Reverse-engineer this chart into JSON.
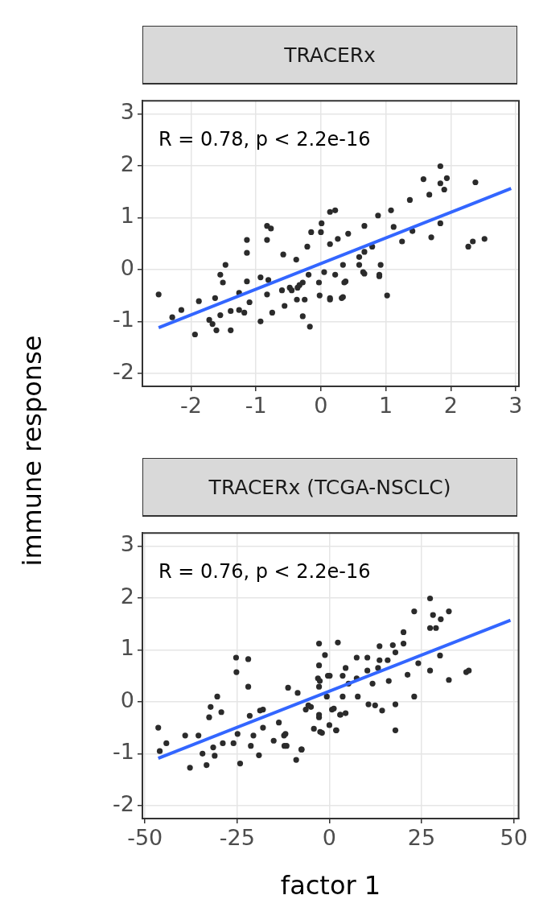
{
  "chart_data": [
    {
      "type": "scatter",
      "title": "TRACERx",
      "ylabel": "immune response",
      "annotations": [
        "R = 0.78, p < 2.2e-16"
      ],
      "xlim": [
        -2.75,
        3.05
      ],
      "xticks": [
        -2,
        -1,
        0,
        1,
        2,
        3
      ],
      "ylim": [
        -2.25,
        3.25
      ],
      "yticks": [
        -2,
        -1,
        0,
        1,
        2,
        3
      ],
      "grid": true,
      "marker": "circle",
      "series": [
        {
          "color": "#2b2b2b",
          "x": [
            1.84,
            1.58,
            1.94,
            1.84,
            1.9,
            1.67,
            2.38,
            1.37,
            0.22,
            0.14,
            -0.83,
            -0.77,
            0.01,
            -0.15,
            0.0,
            -1.14,
            -0.83,
            -1.14,
            -0.58,
            -0.21,
            -0.38,
            0.14,
            0.26,
            0.42,
            0.67,
            0.88,
            1.08,
            1.12,
            1.25,
            1.41,
            1.7,
            1.84,
            2.27,
            2.34,
            2.52,
            0.79,
            0.67,
            0.59,
            0.92,
            0.9,
            0.67,
            0.59,
            0.34,
            0.38,
            0.22,
            0.05,
            -0.03,
            -0.19,
            -0.28,
            -0.36,
            -0.48,
            -0.6,
            0.14,
            0.34,
            1.02,
            -0.02,
            -0.81,
            -0.93,
            -1.14,
            -1.47,
            -1.55,
            -1.51,
            -2.5,
            -1.88,
            -2.15,
            -1.26,
            -0.83,
            -0.45,
            -0.33,
            -0.37,
            -0.25,
            0.14,
            0.32,
            0.36,
            -0.28,
            -0.17,
            -0.56,
            -0.75,
            -0.93,
            -1.1,
            -1.18,
            -1.39,
            -1.55,
            -1.39,
            -1.61,
            -1.72,
            -1.67,
            -1.63,
            -1.94,
            -2.29,
            0.9,
            0.65,
            -1.26
          ],
          "values": [
            1.99,
            1.74,
            1.76,
            1.66,
            1.54,
            1.44,
            1.68,
            1.34,
            1.14,
            1.11,
            0.84,
            0.79,
            0.89,
            0.72,
            0.72,
            0.57,
            0.57,
            0.32,
            0.29,
            0.44,
            0.19,
            0.49,
            0.59,
            0.69,
            0.84,
            1.04,
            1.14,
            0.82,
            0.54,
            0.74,
            0.62,
            0.89,
            0.44,
            0.54,
            0.59,
            0.44,
            0.34,
            0.24,
            0.09,
            -0.1,
            -0.08,
            0.09,
            0.09,
            -0.23,
            -0.1,
            -0.05,
            -0.25,
            -0.1,
            -0.25,
            -0.35,
            -0.35,
            -0.4,
            -0.55,
            -0.53,
            -0.5,
            -0.5,
            -0.2,
            -0.15,
            -0.23,
            0.09,
            -0.1,
            -0.25,
            -0.48,
            -0.61,
            -0.78,
            -0.45,
            -0.48,
            -0.4,
            -0.3,
            -0.58,
            -0.58,
            -0.58,
            -0.55,
            -0.25,
            -0.9,
            -1.1,
            -0.7,
            -0.83,
            -1.0,
            -0.63,
            -0.83,
            -0.8,
            -0.88,
            -1.17,
            -1.17,
            -0.97,
            -1.05,
            -0.55,
            -1.25,
            -0.92,
            -0.13,
            -0.05,
            -0.78
          ]
        },
        {
          "type": "line",
          "color": "#3366ff",
          "marker": "none",
          "x": [
            -2.5,
            2.93
          ],
          "values": [
            -1.12,
            1.56
          ]
        }
      ]
    },
    {
      "type": "scatter",
      "title": "TRACERx (TCGA-NSCLC)",
      "xlabel": "factor 1",
      "annotations": [
        "R = 0.76, p < 2.2e-16"
      ],
      "xlim": [
        -50.7,
        51.3
      ],
      "xticks": [
        -50,
        -25,
        0,
        25,
        50
      ],
      "ylim": [
        -2.25,
        3.25
      ],
      "yticks": [
        -2,
        -1,
        0,
        1,
        2,
        3
      ],
      "grid": true,
      "marker": "circle",
      "series": [
        {
          "color": "#2b2b2b",
          "x": [
            -46.4,
            -44.2,
            -46.0,
            -37.8,
            -33.3,
            -39.1,
            -35.5,
            -34.4,
            -31.1,
            -31.5,
            -32.6,
            -32.2,
            -30.4,
            -29.3,
            -25.3,
            -22.0,
            -25.2,
            -22.0,
            -24.2,
            -26.0,
            -24.9,
            -28.9,
            -21.3,
            -20.6,
            -19.1,
            -21.6,
            -18.8,
            -18.0,
            -18.0,
            -15.1,
            -13.7,
            -11.2,
            -8.6,
            -12.3,
            -11.6,
            -9.0,
            -7.6,
            -6.4,
            -5.0,
            -2.8,
            2.3,
            -1.2,
            -2.8,
            -3.1,
            -2.8,
            -2.5,
            -2.8,
            -0.7,
            0.0,
            1.8,
            0.7,
            2.9,
            -0.4,
            -5.7,
            -2.8,
            -4.2,
            -2.0,
            1.9,
            1.2,
            3.0,
            4.4,
            3.6,
            7.7,
            10.6,
            12.4,
            14.3,
            17.9,
            17.9,
            23.0,
            -7.5,
            -12.2,
            -11.9,
            27.3,
            23.0,
            28.1,
            32.4,
            30.2,
            28.9,
            27.3,
            20.1,
            13.6,
            17.2,
            20.1,
            30.0,
            24.1,
            27.3,
            32.4,
            37.1,
            37.8,
            21.2,
            16.1,
            10.3,
            7.4,
            13.6,
            15.8,
            4.4,
            3.6,
            7.4,
            11.7,
            5.2,
            0.1,
            -2.6,
            10.3,
            13.2,
            17.9
          ],
          "values": [
            -0.5,
            -0.8,
            -0.95,
            -1.27,
            -1.22,
            -0.65,
            -0.65,
            -1.0,
            -1.04,
            -0.88,
            -0.3,
            -0.1,
            0.1,
            -0.2,
            0.85,
            0.82,
            0.57,
            0.29,
            -1.19,
            -0.8,
            -0.62,
            -0.8,
            -0.85,
            -0.65,
            -1.03,
            -0.27,
            -0.17,
            -0.15,
            -0.5,
            -0.75,
            -0.4,
            0.27,
            0.17,
            -0.65,
            -0.85,
            -1.12,
            -0.92,
            -0.15,
            -0.1,
            1.12,
            1.14,
            0.9,
            0.7,
            0.45,
            0.29,
            -0.58,
            -0.3,
            0.1,
            -0.45,
            -0.55,
            -0.15,
            -0.25,
            0.5,
            -0.07,
            -0.25,
            -0.52,
            -0.6,
            -0.55,
            -0.13,
            -0.25,
            -0.22,
            0.1,
            0.1,
            -0.05,
            -0.07,
            -0.17,
            -0.05,
            -0.55,
            0.1,
            -0.92,
            -0.85,
            -0.62,
            1.99,
            1.74,
            1.67,
            1.74,
            1.59,
            1.42,
            1.42,
            1.34,
            1.07,
            1.09,
            1.12,
            0.89,
            0.74,
            0.6,
            0.42,
            0.57,
            0.6,
            0.52,
            0.4,
            0.85,
            0.85,
            0.8,
            0.8,
            0.65,
            0.5,
            0.45,
            0.35,
            0.35,
            0.5,
            0.4,
            0.6,
            0.65,
            0.95
          ]
        },
        {
          "type": "line",
          "color": "#3366ff",
          "marker": "none",
          "x": [
            -46.4,
            49.1
          ],
          "values": [
            -1.09,
            1.57
          ]
        }
      ]
    }
  ]
}
